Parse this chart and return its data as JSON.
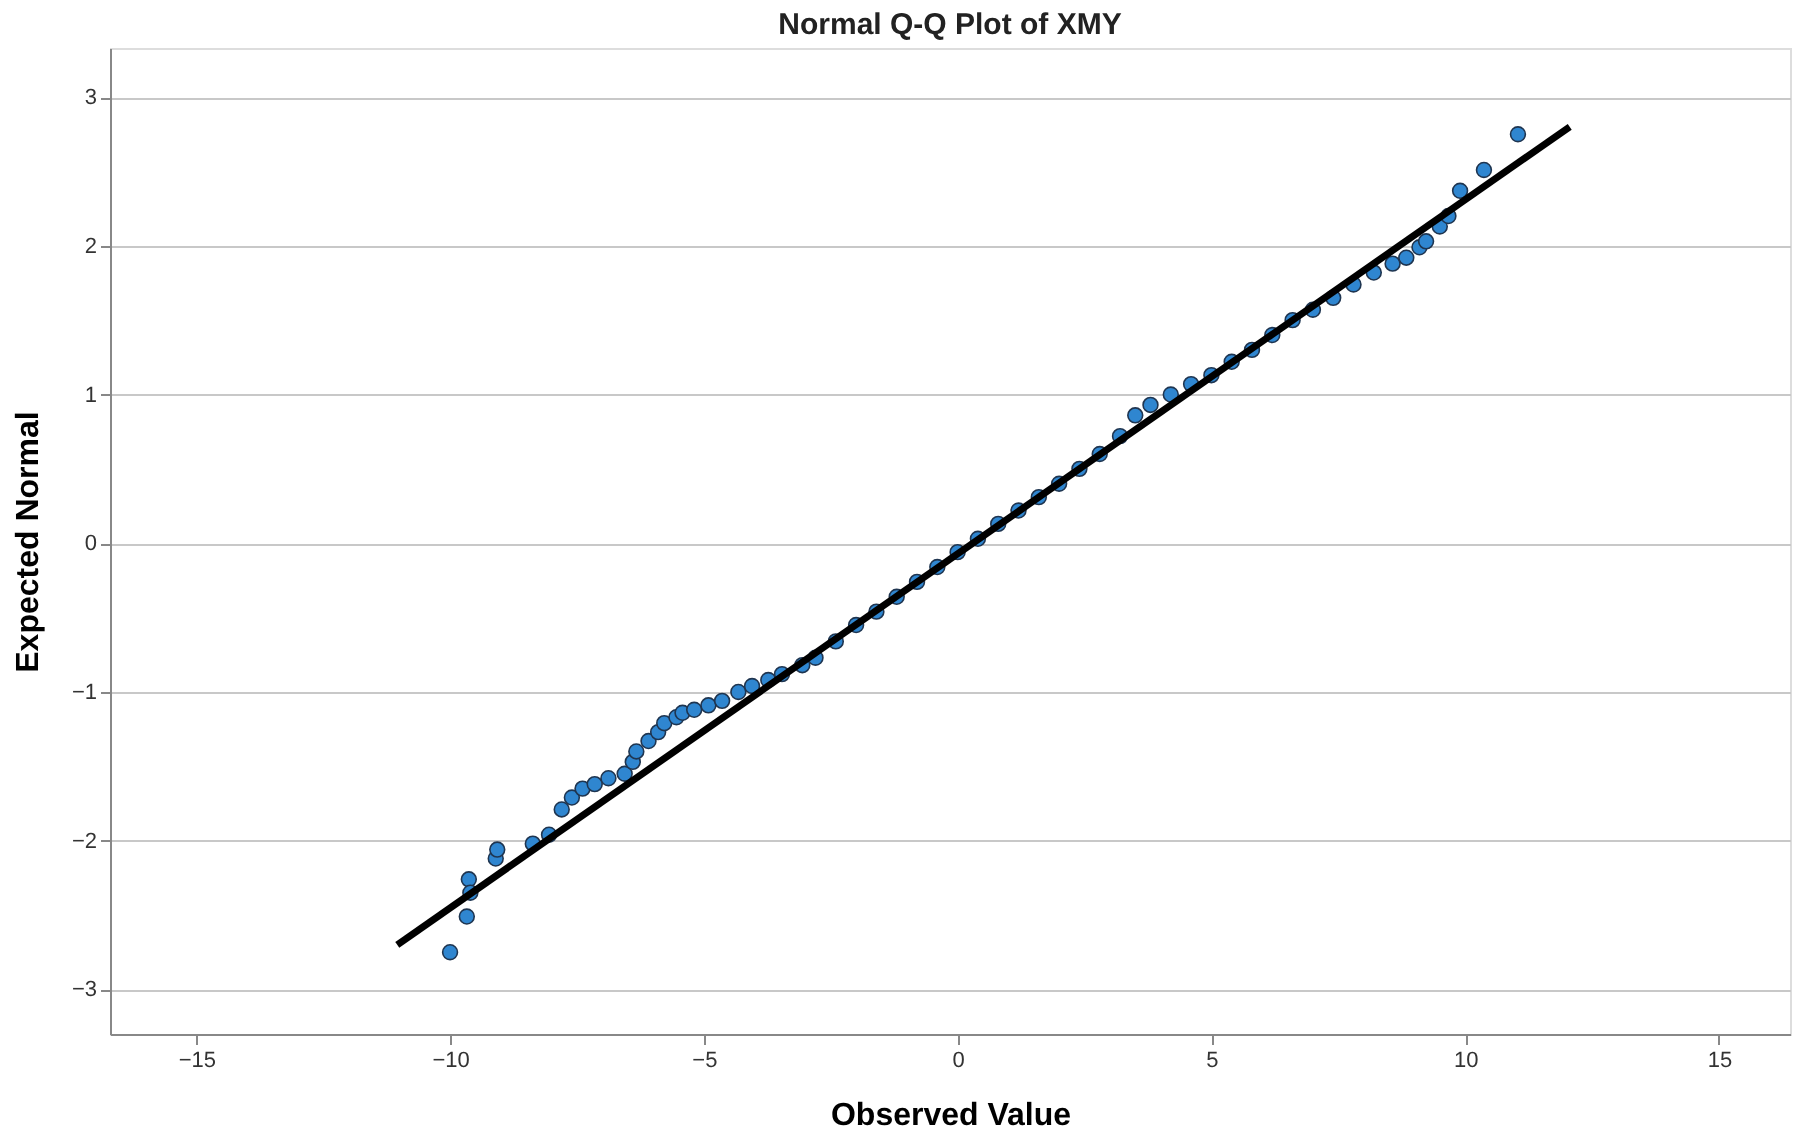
{
  "chart_data": {
    "type": "scatter",
    "title": "Normal Q-Q Plot of XMY",
    "xlabel": "Observed Value",
    "ylabel": "Expected Normal",
    "xlim": [
      -16.7,
      16.4
    ],
    "ylim": [
      -3.3,
      3.33
    ],
    "xticks": [
      -15,
      -10,
      -5,
      0,
      5,
      10,
      15
    ],
    "yticks": [
      -3,
      -2,
      -1,
      0,
      1,
      2,
      3
    ],
    "grid": "y",
    "marker": "circle",
    "series": [
      {
        "type": "scatter",
        "color": "#2f86d0",
        "x": [
          -10.0,
          -9.67,
          -9.63,
          -9.6,
          -9.1,
          -9.07,
          -8.37,
          -8.05,
          -7.8,
          -7.6,
          -7.39,
          -7.15,
          -6.88,
          -6.56,
          -6.4,
          -6.33,
          -6.09,
          -5.9,
          -5.78,
          -5.54,
          -5.42,
          -5.19,
          -4.91,
          -4.64,
          -4.32,
          -4.05,
          -3.73,
          -3.46,
          -3.06,
          -2.8,
          -2.4,
          -2.0,
          -1.6,
          -1.2,
          -0.8,
          -0.4,
          0,
          0.4,
          0.8,
          1.2,
          1.6,
          2.0,
          2.4,
          2.8,
          3.2,
          3.5,
          3.8,
          4.2,
          4.6,
          5.0,
          5.4,
          5.8,
          6.2,
          6.6,
          7.0,
          7.4,
          7.8,
          8.2,
          8.57,
          8.84,
          9.1,
          9.23,
          9.5,
          9.67,
          9.9,
          10.37,
          11.04
        ],
        "values": [
          -2.75,
          -2.51,
          -2.26,
          -2.35,
          -2.12,
          -2.06,
          -2.02,
          -1.96,
          -1.79,
          -1.71,
          -1.65,
          -1.62,
          -1.58,
          -1.55,
          -1.47,
          -1.4,
          -1.33,
          -1.27,
          -1.21,
          -1.17,
          -1.14,
          -1.12,
          -1.09,
          -1.06,
          -1.0,
          -0.96,
          -0.92,
          -0.88,
          -0.82,
          -0.77,
          -0.66,
          -0.55,
          -0.46,
          -0.36,
          -0.26,
          -0.16,
          -0.06,
          0.03,
          0.13,
          0.22,
          0.31,
          0.4,
          0.5,
          0.6,
          0.72,
          0.86,
          0.93,
          1.0,
          1.07,
          1.13,
          1.22,
          1.3,
          1.4,
          1.5,
          1.57,
          1.65,
          1.74,
          1.82,
          1.88,
          1.92,
          1.99,
          2.03,
          2.13,
          2.2,
          2.37,
          2.51,
          2.75
        ]
      },
      {
        "type": "line",
        "color": "#000000",
        "x": [
          -11.04,
          12.06
        ],
        "values": [
          -2.7,
          2.8
        ],
        "marker": "none",
        "line_style": "solid"
      }
    ]
  }
}
